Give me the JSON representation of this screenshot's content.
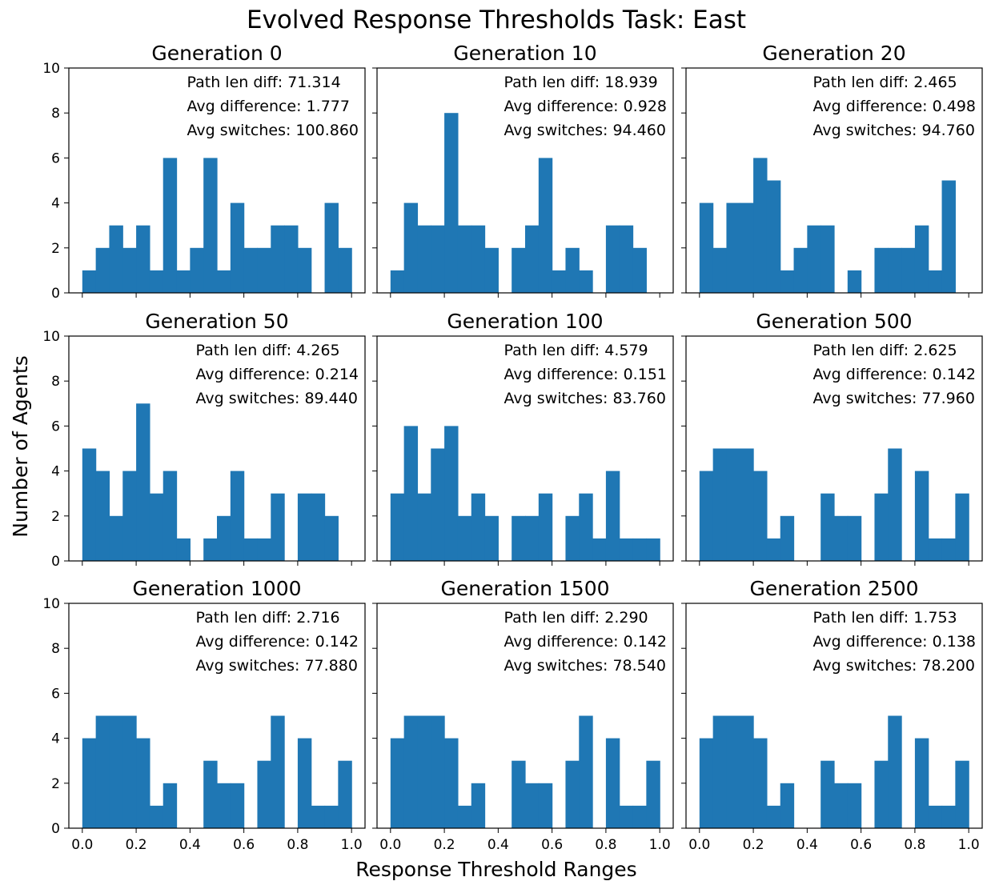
{
  "figure": {
    "title": "Evolved Response Thresholds  Task: East",
    "xlabel": "Response Threshold Ranges",
    "ylabel": "Number of Agents",
    "bar_color": "#1f77b4"
  },
  "chart_data": [
    {
      "type": "bar",
      "title": "Generation 0",
      "xlim": [
        0,
        1
      ],
      "ylim": [
        0,
        10
      ],
      "bins": 20,
      "xticks": [
        "0.0",
        "0.2",
        "0.4",
        "0.6",
        "0.8",
        "1.0"
      ],
      "yticks": [
        "0",
        "2",
        "4",
        "6",
        "8",
        "10"
      ],
      "values": [
        1,
        2,
        3,
        2,
        3,
        1,
        6,
        1,
        2,
        6,
        1,
        4,
        2,
        2,
        3,
        3,
        2,
        0,
        4,
        2
      ],
      "annotations": [
        "Path len diff: 71.314",
        "Avg difference: 1.777",
        "Avg switches: 100.860"
      ]
    },
    {
      "type": "bar",
      "title": "Generation 10",
      "xlim": [
        0,
        1
      ],
      "ylim": [
        0,
        10
      ],
      "bins": 20,
      "xticks": [
        "0.0",
        "0.2",
        "0.4",
        "0.6",
        "0.8",
        "1.0"
      ],
      "yticks": [
        "0",
        "2",
        "4",
        "6",
        "8",
        "10"
      ],
      "values": [
        1,
        4,
        3,
        3,
        8,
        3,
        3,
        2,
        0,
        2,
        3,
        6,
        1,
        2,
        1,
        0,
        3,
        3,
        2,
        0
      ],
      "annotations": [
        "Path len diff: 18.939",
        "Avg difference: 0.928",
        "Avg switches: 94.460"
      ]
    },
    {
      "type": "bar",
      "title": "Generation 20",
      "xlim": [
        0,
        1
      ],
      "ylim": [
        0,
        10
      ],
      "bins": 20,
      "xticks": [
        "0.0",
        "0.2",
        "0.4",
        "0.6",
        "0.8",
        "1.0"
      ],
      "yticks": [
        "0",
        "2",
        "4",
        "6",
        "8",
        "10"
      ],
      "values": [
        4,
        2,
        4,
        4,
        6,
        5,
        1,
        2,
        3,
        3,
        0,
        1,
        0,
        2,
        2,
        2,
        3,
        1,
        5,
        0
      ],
      "annotations": [
        "Path len diff: 2.465",
        "Avg difference: 0.498",
        "Avg switches: 94.760"
      ]
    },
    {
      "type": "bar",
      "title": "Generation 50",
      "xlim": [
        0,
        1
      ],
      "ylim": [
        0,
        10
      ],
      "bins": 20,
      "xticks": [
        "0.0",
        "0.2",
        "0.4",
        "0.6",
        "0.8",
        "1.0"
      ],
      "yticks": [
        "0",
        "2",
        "4",
        "6",
        "8",
        "10"
      ],
      "values": [
        5,
        4,
        2,
        4,
        7,
        3,
        4,
        1,
        0,
        1,
        2,
        4,
        1,
        1,
        3,
        0,
        3,
        3,
        2,
        0
      ],
      "annotations": [
        "Path len diff: 4.265",
        "Avg difference: 0.214",
        "Avg switches: 89.440"
      ]
    },
    {
      "type": "bar",
      "title": "Generation 100",
      "xlim": [
        0,
        1
      ],
      "ylim": [
        0,
        10
      ],
      "bins": 20,
      "xticks": [
        "0.0",
        "0.2",
        "0.4",
        "0.6",
        "0.8",
        "1.0"
      ],
      "yticks": [
        "0",
        "2",
        "4",
        "6",
        "8",
        "10"
      ],
      "values": [
        3,
        6,
        3,
        5,
        6,
        2,
        3,
        2,
        0,
        2,
        2,
        3,
        0,
        2,
        3,
        1,
        4,
        1,
        1,
        1
      ],
      "annotations": [
        "Path len diff: 4.579",
        "Avg difference: 0.151",
        "Avg switches: 83.760"
      ]
    },
    {
      "type": "bar",
      "title": "Generation 500",
      "xlim": [
        0,
        1
      ],
      "ylim": [
        0,
        10
      ],
      "bins": 20,
      "xticks": [
        "0.0",
        "0.2",
        "0.4",
        "0.6",
        "0.8",
        "1.0"
      ],
      "yticks": [
        "0",
        "2",
        "4",
        "6",
        "8",
        "10"
      ],
      "values": [
        4,
        5,
        5,
        5,
        4,
        1,
        2,
        0,
        0,
        3,
        2,
        2,
        0,
        3,
        5,
        0,
        4,
        1,
        1,
        3
      ],
      "annotations": [
        "Path len diff: 2.625",
        "Avg difference: 0.142",
        "Avg switches: 77.960"
      ]
    },
    {
      "type": "bar",
      "title": "Generation 1000",
      "xlim": [
        0,
        1
      ],
      "ylim": [
        0,
        10
      ],
      "bins": 20,
      "xticks": [
        "0.0",
        "0.2",
        "0.4",
        "0.6",
        "0.8",
        "1.0"
      ],
      "yticks": [
        "0",
        "2",
        "4",
        "6",
        "8",
        "10"
      ],
      "values": [
        4,
        5,
        5,
        5,
        4,
        1,
        2,
        0,
        0,
        3,
        2,
        2,
        0,
        3,
        5,
        0,
        4,
        1,
        1,
        3
      ],
      "annotations": [
        "Path len diff: 2.716",
        "Avg difference: 0.142",
        "Avg switches: 77.880"
      ]
    },
    {
      "type": "bar",
      "title": "Generation 1500",
      "xlim": [
        0,
        1
      ],
      "ylim": [
        0,
        10
      ],
      "bins": 20,
      "xticks": [
        "0.0",
        "0.2",
        "0.4",
        "0.6",
        "0.8",
        "1.0"
      ],
      "yticks": [
        "0",
        "2",
        "4",
        "6",
        "8",
        "10"
      ],
      "values": [
        4,
        5,
        5,
        5,
        4,
        1,
        2,
        0,
        0,
        3,
        2,
        2,
        0,
        3,
        5,
        0,
        4,
        1,
        1,
        3
      ],
      "annotations": [
        "Path len diff: 2.290",
        "Avg difference: 0.142",
        "Avg switches: 78.540"
      ]
    },
    {
      "type": "bar",
      "title": "Generation 2500",
      "xlim": [
        0,
        1
      ],
      "ylim": [
        0,
        10
      ],
      "bins": 20,
      "xticks": [
        "0.0",
        "0.2",
        "0.4",
        "0.6",
        "0.8",
        "1.0"
      ],
      "yticks": [
        "0",
        "2",
        "4",
        "6",
        "8",
        "10"
      ],
      "values": [
        4,
        5,
        5,
        5,
        4,
        1,
        2,
        0,
        0,
        3,
        2,
        2,
        0,
        3,
        5,
        0,
        4,
        1,
        1,
        3
      ],
      "annotations": [
        "Path len diff: 1.753",
        "Avg difference: 0.138",
        "Avg switches: 78.200"
      ]
    }
  ]
}
